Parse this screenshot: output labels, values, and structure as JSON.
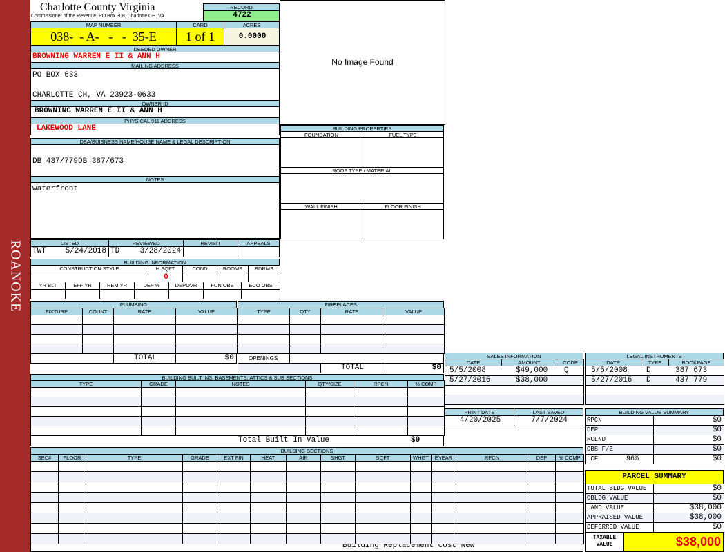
{
  "sidebar": {
    "label": "ROANOKE",
    "color": "#a52a2a"
  },
  "header": {
    "title": "Charlotte County Virginia",
    "subtitle": "Commissioner of the Revenue, PO Box 308, Charlotte CH, VA",
    "record_label": "RECORD",
    "record": "4722"
  },
  "parcel": {
    "map_label": "MAP NUMBER",
    "map": "038-  - A-   -   -  35-E",
    "card_label": "CARD",
    "card": "1 of 1",
    "acres_label": "ACRES",
    "acres": "0.0000"
  },
  "owner": {
    "deeded_label": "DEEDED OWNER",
    "deeded": "BROWNING WARREN E II & ANN H",
    "mailing_label": "MAILING ADDRESS",
    "mail1": "PO BOX 633",
    "mail2": "CHARLOTTE CH, VA 23923-0633",
    "id_label": "OWNER ID",
    "id": "BROWNING WARREN E II & ANN H",
    "addr_label": "PHYSICAL 911 ADDRESS",
    "addr": "LAKEWOOD LANE"
  },
  "legal": {
    "label": "DBA/BUISNESS NAME/HOUSE NAME & LEGAL DESCRIPTION",
    "text": "DB 437/779DB 387/673",
    "notes_label": "NOTES",
    "notes": "waterfront"
  },
  "image": {
    "text": "No Image Found"
  },
  "props": {
    "title": "BUILDING PROPERTIES",
    "foundation": "FOUNDATION",
    "fuel": "FUEL TYPE",
    "roof": "ROOF TYPE / MATERIAL",
    "wall": "WALL FINISH",
    "floor": "FLOOR FINISH"
  },
  "review": {
    "listed": "LISTED",
    "reviewed": "REVIEWED",
    "revisit": "REVISIT",
    "appeals": "APPEALS",
    "listed_by": "TWT",
    "listed_date": "5/24/2018",
    "reviewed_by": "TD",
    "reviewed_date": "3/28/2024"
  },
  "bldg": {
    "title": "BUILDING INFORMATION",
    "cols1": [
      "CONSTRUCTION STYLE",
      "H SQFT",
      "COND",
      "ROOMS",
      "BDRMS"
    ],
    "hsqft": "0",
    "cols2": [
      "YR BLT",
      "EFF YR",
      "REM YR",
      "DEP %",
      "DEPOVR",
      "FUN OBS",
      "ECO OBS"
    ]
  },
  "plumbing": {
    "title": "PLUMBING",
    "cols": [
      "FIXTURE",
      "COUNT",
      "RATE",
      "VALUE"
    ],
    "total_label": "TOTAL",
    "total": "$0"
  },
  "fireplaces": {
    "title": "FIREPLACES",
    "cols": [
      "TYPE",
      "QTY",
      "RATE",
      "VALUE"
    ],
    "openings": "OPENINGS",
    "total_label": "TOTAL",
    "total": "$0"
  },
  "builtins": {
    "title": "BUILDING BUILT INS, BASEMENTS, ATTICS & SUB SECTIONS",
    "cols": [
      "TYPE",
      "GRADE",
      "NOTES",
      "QTY/SIZE",
      "RPCN",
      "% COMP"
    ],
    "total_label": "Total Built In Value",
    "total": "$0"
  },
  "sections": {
    "title": "BUILDING SECTIONS",
    "cols": [
      "SEC#",
      "FLOOR",
      "TYPE",
      "GRADE",
      "EXT FIN",
      "HEAT",
      "AIR",
      "SHGT",
      "SQFT",
      "WHGT",
      "EYEAR",
      "RPCN",
      "DEP",
      "% COMP"
    ],
    "footer": "Building Replacement Cost New"
  },
  "sales": {
    "title": "SALES INFORMATION",
    "cols": [
      "DATE",
      "AMOUNT",
      "CODE"
    ],
    "rows": [
      [
        "5/5/2008",
        "$49,000",
        "Q"
      ],
      [
        "5/27/2016",
        "$38,000",
        ""
      ]
    ]
  },
  "instruments": {
    "title": "LEGAL INSTRUMENTS",
    "cols": [
      "DATE",
      "TYPE",
      "BOOKPAGE"
    ],
    "rows": [
      [
        "5/5/2008",
        "D",
        "387 673"
      ],
      [
        "5/27/2016",
        "D",
        "437 779"
      ]
    ]
  },
  "dates": {
    "print_label": "PRINT DATE",
    "print": "4/20/2025",
    "saved_label": "LAST SAVED",
    "saved": "7/7/2024"
  },
  "bvs": {
    "title": "BUILDING VALUE SUMMARY",
    "rows": [
      [
        "RPCN",
        "",
        "$0"
      ],
      [
        "DEP",
        "−",
        "$0"
      ],
      [
        "RCLND",
        "",
        "$0"
      ],
      [
        "OBS F/E",
        "−",
        "$0"
      ],
      [
        "LCF",
        "",
        "$0"
      ]
    ],
    "lcf_pct": "96%"
  },
  "summary": {
    "title": "PARCEL SUMMARY",
    "rows": [
      [
        "TOTAL BLDG VALUE",
        "",
        "$0"
      ],
      [
        "OBLDG VALUE",
        "+",
        "$0"
      ],
      [
        "LAND VALUE",
        "+",
        "$38,000"
      ],
      [
        "APPRAISED VALUE",
        "",
        "$38,000"
      ],
      [
        "DEFERRED VALUE",
        "−",
        "$0"
      ]
    ],
    "taxable_label": "TAXABLE VALUE",
    "taxable": "$38,000"
  }
}
